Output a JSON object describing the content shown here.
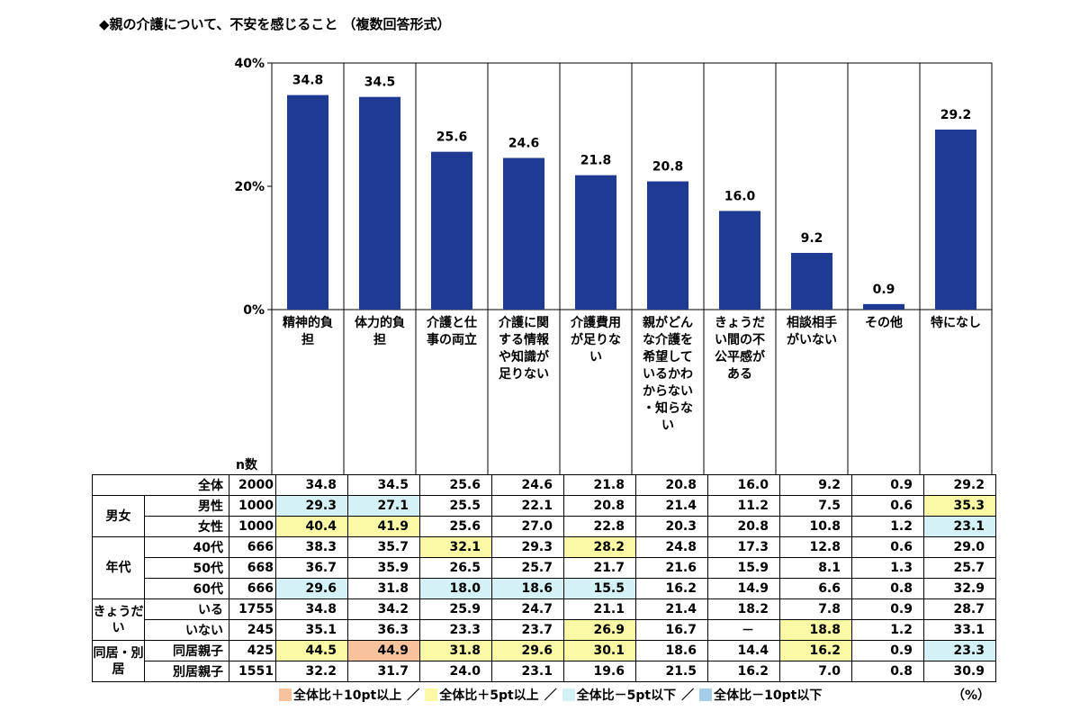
{
  "title": "◆親の介護について、不安を感じること （複数回答形式）",
  "chart_data": {
    "type": "bar",
    "title": "◆親の介護について、不安を感じること （複数回答形式）",
    "categories": [
      "精神的負担",
      "体力的負担",
      "介護と仕事の両立",
      "介護に関する情報や知識が足りない",
      "介護費用が足りない",
      "親がどんな介護を希望しているかわからない・知らない",
      "きょうだい間の不公平感がある",
      "相談相手がいない",
      "その他",
      "特になし"
    ],
    "values": [
      34.8,
      34.5,
      25.6,
      24.6,
      21.8,
      20.8,
      16.0,
      9.2,
      0.9,
      29.2
    ],
    "value_labels": [
      "34.8",
      "34.5",
      "25.6",
      "24.6",
      "21.8",
      "20.8",
      "16.0",
      "9.2",
      "0.9",
      "29.2"
    ],
    "ylim": [
      0,
      40
    ],
    "yticks": [
      "0%",
      "20%",
      "40%"
    ],
    "bar_color": "#1f3a93",
    "grid": false
  },
  "table": {
    "n_header": "n数",
    "rows": [
      {
        "group": "",
        "label": "全体",
        "n": "2000",
        "values": [
          "34.8",
          "34.5",
          "25.6",
          "24.6",
          "21.8",
          "20.8",
          "16.0",
          "9.2",
          "0.9",
          "29.2"
        ],
        "colors": [
          "",
          "",
          "",
          "",
          "",
          "",
          "",
          "",
          "",
          ""
        ]
      },
      {
        "group": "男女",
        "label": "男性",
        "n": "1000",
        "values": [
          "29.3",
          "27.1",
          "25.5",
          "22.1",
          "20.8",
          "21.4",
          "11.2",
          "7.5",
          "0.6",
          "35.3"
        ],
        "colors": [
          "lightblue",
          "lightblue",
          "",
          "",
          "",
          "",
          "",
          "",
          "",
          "yellow"
        ]
      },
      {
        "group": "男女",
        "label": "女性",
        "n": "1000",
        "values": [
          "40.4",
          "41.9",
          "25.6",
          "27.0",
          "22.8",
          "20.3",
          "20.8",
          "10.8",
          "1.2",
          "23.1"
        ],
        "colors": [
          "yellow",
          "yellow",
          "",
          "",
          "",
          "",
          "",
          "",
          "",
          "lightblue"
        ]
      },
      {
        "group": "年代",
        "label": "40代",
        "n": "666",
        "values": [
          "38.3",
          "35.7",
          "32.1",
          "29.3",
          "28.2",
          "24.8",
          "17.3",
          "12.8",
          "0.6",
          "29.0"
        ],
        "colors": [
          "",
          "",
          "yellow",
          "",
          "yellow",
          "",
          "",
          "",
          "",
          ""
        ]
      },
      {
        "group": "年代",
        "label": "50代",
        "n": "668",
        "values": [
          "36.7",
          "35.9",
          "26.5",
          "25.7",
          "21.7",
          "21.6",
          "15.9",
          "8.1",
          "1.3",
          "25.7"
        ],
        "colors": [
          "",
          "",
          "",
          "",
          "",
          "",
          "",
          "",
          "",
          ""
        ]
      },
      {
        "group": "年代",
        "label": "60代",
        "n": "666",
        "values": [
          "29.6",
          "31.8",
          "18.0",
          "18.6",
          "15.5",
          "16.2",
          "14.9",
          "6.6",
          "0.8",
          "32.9"
        ],
        "colors": [
          "lightblue",
          "",
          "lightblue",
          "lightblue",
          "lightblue",
          "",
          "",
          "",
          "",
          ""
        ]
      },
      {
        "group": "きょうだい",
        "label": "いる",
        "n": "1755",
        "values": [
          "34.8",
          "34.2",
          "25.9",
          "24.7",
          "21.1",
          "21.4",
          "18.2",
          "7.8",
          "0.9",
          "28.7"
        ],
        "colors": [
          "",
          "",
          "",
          "",
          "",
          "",
          "",
          "",
          "",
          ""
        ]
      },
      {
        "group": "きょうだい",
        "label": "いない",
        "n": "245",
        "values": [
          "35.1",
          "36.3",
          "23.3",
          "23.7",
          "26.9",
          "16.7",
          "－",
          "18.8",
          "1.2",
          "33.1"
        ],
        "colors": [
          "",
          "",
          "",
          "",
          "yellow",
          "",
          "",
          "yellow",
          "",
          ""
        ]
      },
      {
        "group": "同居・別居",
        "label": "同居親子",
        "n": "425",
        "values": [
          "44.5",
          "44.9",
          "31.8",
          "29.6",
          "30.1",
          "18.6",
          "14.4",
          "16.2",
          "0.9",
          "23.3"
        ],
        "colors": [
          "yellow",
          "orange",
          "yellow",
          "yellow",
          "yellow",
          "",
          "",
          "yellow",
          "",
          "lightblue"
        ]
      },
      {
        "group": "同居・別居",
        "label": "別居親子",
        "n": "1551",
        "values": [
          "32.2",
          "31.7",
          "24.0",
          "23.1",
          "19.6",
          "21.5",
          "16.2",
          "7.0",
          "0.8",
          "30.9"
        ],
        "colors": [
          "",
          "",
          "",
          "",
          "",
          "",
          "",
          "",
          "",
          ""
        ]
      }
    ],
    "groups": [
      {
        "label": "男女",
        "start": 1,
        "span": 2
      },
      {
        "label": "年代",
        "start": 3,
        "span": 3
      },
      {
        "label": "きょうだい",
        "start": 6,
        "span": 2
      },
      {
        "label": "同居・別居",
        "start": 8,
        "span": 2
      }
    ]
  },
  "legend": [
    {
      "label": "全体比＋10pt以上",
      "color": "#f7c29c"
    },
    {
      "label": "全体比＋5pt以上",
      "color": "#fbf8a6"
    },
    {
      "label": "全体比－5pt以下",
      "color": "#d3f1f6"
    },
    {
      "label": "全体比－10pt以下",
      "color": "#a3cde9"
    }
  ],
  "legend_separator": "／",
  "unit": "（%）"
}
